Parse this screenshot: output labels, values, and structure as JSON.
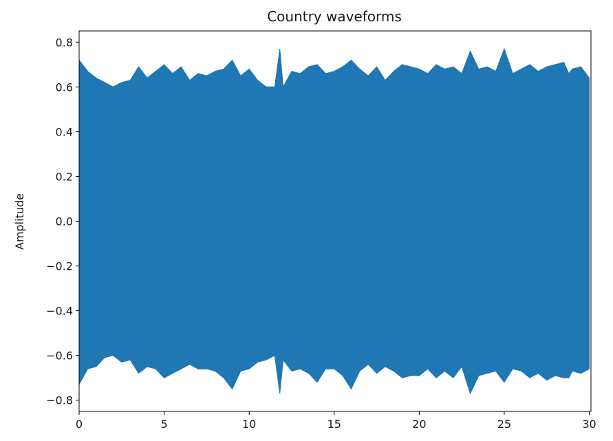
{
  "chart_data": {
    "type": "area",
    "title": "Country waveforms",
    "xlabel": "",
    "ylabel": "Amplitude",
    "xlim": [
      0,
      30.1
    ],
    "ylim": [
      -0.85,
      0.85
    ],
    "x_ticks": [
      0,
      5,
      10,
      15,
      20,
      25,
      30
    ],
    "x_tick_labels": [
      "0",
      "5",
      "10",
      "15",
      "20",
      "25",
      "30"
    ],
    "y_ticks": [
      0.8,
      0.6,
      0.4,
      0.2,
      0.0,
      -0.2,
      -0.4,
      -0.6,
      -0.8
    ],
    "y_tick_labels": [
      "0.8",
      "0.6",
      "0.4",
      "0.2",
      "0.0",
      "−0.2",
      "−0.4",
      "−0.6",
      "−0.8"
    ],
    "grid": false,
    "series_color": "#1f77b4",
    "series": [
      {
        "x": [
          0,
          0.5,
          1,
          1.5,
          2,
          2.5,
          3,
          3.5,
          4,
          4.5,
          5,
          5.5,
          6,
          6.5,
          7,
          7.5,
          8,
          8.5,
          9,
          9.5,
          10,
          10.5,
          11,
          11.5,
          11.8,
          12,
          12.5,
          13,
          13.5,
          14,
          14.5,
          15,
          15.5,
          16,
          16.5,
          17,
          17.5,
          18,
          18.5,
          19,
          19.5,
          20,
          20.5,
          21,
          21.5,
          22,
          22.5,
          23,
          23.5,
          24,
          24.5,
          25,
          25.5,
          26,
          26.5,
          27,
          27.5,
          28,
          28.5,
          28.8,
          29,
          29.5,
          30
        ],
        "upper": [
          0.72,
          0.67,
          0.64,
          0.62,
          0.6,
          0.62,
          0.63,
          0.69,
          0.64,
          0.67,
          0.7,
          0.66,
          0.69,
          0.63,
          0.66,
          0.65,
          0.67,
          0.68,
          0.72,
          0.65,
          0.68,
          0.63,
          0.6,
          0.6,
          0.77,
          0.6,
          0.67,
          0.66,
          0.69,
          0.7,
          0.66,
          0.67,
          0.69,
          0.72,
          0.68,
          0.65,
          0.69,
          0.63,
          0.67,
          0.7,
          0.69,
          0.68,
          0.66,
          0.7,
          0.68,
          0.69,
          0.66,
          0.76,
          0.68,
          0.69,
          0.67,
          0.77,
          0.66,
          0.68,
          0.7,
          0.67,
          0.69,
          0.7,
          0.71,
          0.66,
          0.68,
          0.69,
          0.64
        ],
        "lower": [
          -0.73,
          -0.66,
          -0.65,
          -0.61,
          -0.6,
          -0.63,
          -0.62,
          -0.68,
          -0.65,
          -0.66,
          -0.7,
          -0.68,
          -0.66,
          -0.64,
          -0.66,
          -0.66,
          -0.67,
          -0.7,
          -0.75,
          -0.67,
          -0.66,
          -0.63,
          -0.62,
          -0.6,
          -0.77,
          -0.62,
          -0.67,
          -0.66,
          -0.68,
          -0.72,
          -0.66,
          -0.66,
          -0.69,
          -0.75,
          -0.67,
          -0.64,
          -0.68,
          -0.65,
          -0.67,
          -0.7,
          -0.69,
          -0.69,
          -0.66,
          -0.7,
          -0.67,
          -0.7,
          -0.65,
          -0.77,
          -0.69,
          -0.68,
          -0.67,
          -0.72,
          -0.66,
          -0.67,
          -0.7,
          -0.68,
          -0.71,
          -0.69,
          -0.7,
          -0.7,
          -0.67,
          -0.68,
          -0.66
        ]
      }
    ]
  }
}
